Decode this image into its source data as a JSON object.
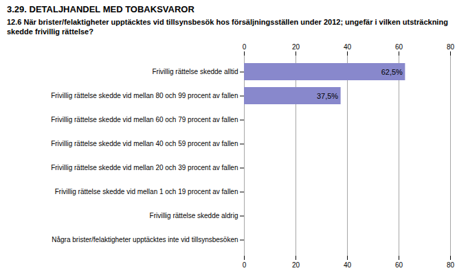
{
  "chart_data": {
    "type": "bar",
    "orientation": "horizontal",
    "title": "3.29. DETALJHANDEL MED TOBAKSVAROR",
    "subtitle": "12.6 När brister/felaktigheter upptäcktes vid tillsynsbesök hos försäljningsställen under 2012; ungefär i vilken utsträckning skedde frivillig rättelse?",
    "categories": [
      "Frivillig rättelse skedde alltid",
      "Frivillig rättelse skedde vid mellan 80 och 99 procent av fallen",
      "Frivillig rättelse skedde vid mellan 60 och 79 procent av fallen",
      "Frivillig rättelse skedde vid mellan 40 och 59 procent av fallen",
      "Frivillig rättelse skedde vid mellan 20 och 39 procent av fallen",
      "Frivillig rättelse skedde vid mellan 1 och 19 procent av fallen",
      "Frivillig rättelse skedde aldrig",
      "Några brister/felaktigheter upptäcktes inte vid tillsynsbesöken"
    ],
    "values": [
      62.5,
      37.5,
      0,
      0,
      0,
      0,
      0,
      0
    ],
    "value_labels": [
      "62,5%",
      "37,5%",
      null,
      null,
      null,
      null,
      null,
      null
    ],
    "data_labels": true,
    "color": "#8888cc",
    "xlim": [
      0,
      80
    ],
    "xticks": [
      0,
      20,
      40,
      60,
      80
    ],
    "grid": true
  }
}
